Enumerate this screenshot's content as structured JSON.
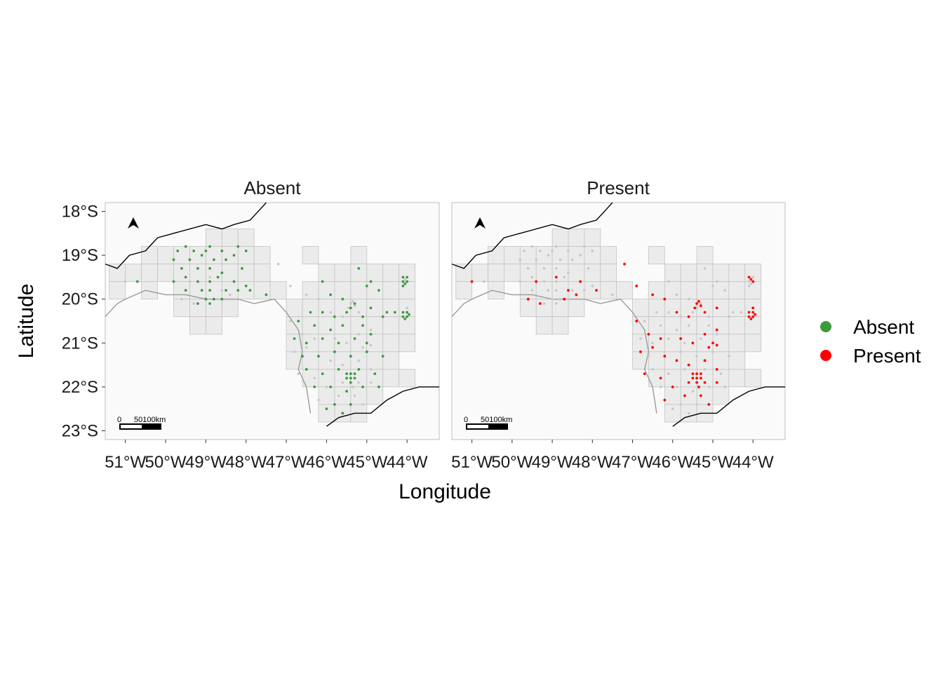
{
  "axes": {
    "xlabel": "Longitude",
    "ylabel": "Latitude",
    "x_ticks": [
      "51°W",
      "50°W",
      "49°W",
      "48°W",
      "47°W",
      "46°W",
      "45°W",
      "44°W"
    ],
    "y_ticks": [
      "18°S",
      "19°S",
      "20°S",
      "21°S",
      "22°S",
      "23°S"
    ]
  },
  "panels": [
    {
      "title": "Absent",
      "scale_labels": [
        "0",
        "50100km"
      ]
    },
    {
      "title": "Present",
      "scale_labels": [
        "0",
        "50100km"
      ]
    }
  ],
  "legend": {
    "items": [
      {
        "label": "Absent",
        "color": "#3d9b3d"
      },
      {
        "label": "Present",
        "color": "#ff0000"
      }
    ]
  },
  "colors": {
    "absent": "#3d9b3d",
    "present": "#ff0000",
    "background_points": "#c8c8c8",
    "grid_fill": "#ebebeb",
    "grid_stroke": "#c4c4c4",
    "panel_bg": "#fafafa"
  },
  "chart_data": {
    "type": "scatter",
    "xlim": [
      -51.5,
      -43.2
    ],
    "ylim": [
      -23.2,
      -17.8
    ],
    "grid_cells": [
      [
        -48.8,
        -18.6
      ],
      [
        -48.4,
        -18.6
      ],
      [
        -48.0,
        -18.6
      ],
      [
        -50.4,
        -19.0
      ],
      [
        -50.0,
        -19.0
      ],
      [
        -49.6,
        -19.0
      ],
      [
        -49.2,
        -19.0
      ],
      [
        -48.8,
        -19.0
      ],
      [
        -48.4,
        -19.0
      ],
      [
        -48.0,
        -19.0
      ],
      [
        -47.6,
        -19.0
      ],
      [
        -46.4,
        -19.0
      ],
      [
        -45.2,
        -19.0
      ],
      [
        -51.2,
        -19.4
      ],
      [
        -50.8,
        -19.4
      ],
      [
        -50.4,
        -19.4
      ],
      [
        -50.0,
        -19.4
      ],
      [
        -49.6,
        -19.4
      ],
      [
        -49.2,
        -19.4
      ],
      [
        -48.8,
        -19.4
      ],
      [
        -48.4,
        -19.4
      ],
      [
        -48.0,
        -19.4
      ],
      [
        -47.6,
        -19.4
      ],
      [
        -46.0,
        -19.4
      ],
      [
        -45.6,
        -19.4
      ],
      [
        -45.2,
        -19.4
      ],
      [
        -44.8,
        -19.4
      ],
      [
        -44.4,
        -19.4
      ],
      [
        -44.0,
        -19.4
      ],
      [
        -51.2,
        -19.8
      ],
      [
        -50.4,
        -19.8
      ],
      [
        -49.6,
        -19.8
      ],
      [
        -49.2,
        -19.8
      ],
      [
        -48.8,
        -19.8
      ],
      [
        -48.4,
        -19.8
      ],
      [
        -48.0,
        -19.8
      ],
      [
        -47.6,
        -19.8
      ],
      [
        -47.2,
        -19.8
      ],
      [
        -46.4,
        -19.8
      ],
      [
        -46.0,
        -19.8
      ],
      [
        -45.6,
        -19.8
      ],
      [
        -45.2,
        -19.8
      ],
      [
        -44.8,
        -19.8
      ],
      [
        -44.4,
        -19.8
      ],
      [
        -44.0,
        -19.8
      ],
      [
        -49.6,
        -20.2
      ],
      [
        -49.2,
        -20.2
      ],
      [
        -48.8,
        -20.2
      ],
      [
        -48.4,
        -20.2
      ],
      [
        -46.8,
        -20.2
      ],
      [
        -46.4,
        -20.2
      ],
      [
        -46.0,
        -20.2
      ],
      [
        -45.6,
        -20.2
      ],
      [
        -45.2,
        -20.2
      ],
      [
        -44.8,
        -20.2
      ],
      [
        -44.4,
        -20.2
      ],
      [
        -44.0,
        -20.2
      ],
      [
        -49.2,
        -20.6
      ],
      [
        -48.8,
        -20.6
      ],
      [
        -46.8,
        -20.6
      ],
      [
        -46.4,
        -20.6
      ],
      [
        -46.0,
        -20.6
      ],
      [
        -45.6,
        -20.6
      ],
      [
        -45.2,
        -20.6
      ],
      [
        -44.8,
        -20.6
      ],
      [
        -44.4,
        -20.6
      ],
      [
        -44.0,
        -20.6
      ],
      [
        -46.8,
        -21.0
      ],
      [
        -46.4,
        -21.0
      ],
      [
        -46.0,
        -21.0
      ],
      [
        -45.6,
        -21.0
      ],
      [
        -45.2,
        -21.0
      ],
      [
        -44.8,
        -21.0
      ],
      [
        -44.4,
        -21.0
      ],
      [
        -44.0,
        -21.0
      ],
      [
        -46.8,
        -21.4
      ],
      [
        -46.4,
        -21.4
      ],
      [
        -46.0,
        -21.4
      ],
      [
        -45.6,
        -21.4
      ],
      [
        -45.2,
        -21.4
      ],
      [
        -44.8,
        -21.4
      ],
      [
        -44.4,
        -21.4
      ],
      [
        -46.4,
        -21.8
      ],
      [
        -46.0,
        -21.8
      ],
      [
        -45.6,
        -21.8
      ],
      [
        -45.2,
        -21.8
      ],
      [
        -44.8,
        -21.8
      ],
      [
        -44.4,
        -21.8
      ],
      [
        -44.0,
        -21.8
      ],
      [
        -46.0,
        -22.2
      ],
      [
        -45.6,
        -22.2
      ],
      [
        -45.2,
        -22.2
      ],
      [
        -44.8,
        -22.2
      ],
      [
        -46.0,
        -22.6
      ],
      [
        -45.6,
        -22.6
      ],
      [
        -45.2,
        -22.6
      ]
    ],
    "series": [
      {
        "name": "Absent",
        "points": [
          [
            -49.7,
            -18.9
          ],
          [
            -49.5,
            -18.8
          ],
          [
            -49.3,
            -18.9
          ],
          [
            -49.0,
            -18.9
          ],
          [
            -48.9,
            -18.8
          ],
          [
            -48.6,
            -18.9
          ],
          [
            -48.2,
            -18.8
          ],
          [
            -48.0,
            -18.9
          ],
          [
            -49.8,
            -19.1
          ],
          [
            -49.4,
            -19.1
          ],
          [
            -49.1,
            -19.0
          ],
          [
            -48.8,
            -19.1
          ],
          [
            -48.5,
            -19.1
          ],
          [
            -48.3,
            -19.0
          ],
          [
            -49.6,
            -19.3
          ],
          [
            -49.2,
            -19.3
          ],
          [
            -48.9,
            -19.3
          ],
          [
            -48.6,
            -19.4
          ],
          [
            -48.1,
            -19.3
          ],
          [
            -50.7,
            -19.6
          ],
          [
            -49.8,
            -19.6
          ],
          [
            -49.5,
            -19.5
          ],
          [
            -49.2,
            -19.6
          ],
          [
            -48.9,
            -19.6
          ],
          [
            -48.7,
            -19.5
          ],
          [
            -48.3,
            -19.6
          ],
          [
            -48.0,
            -19.7
          ],
          [
            -49.5,
            -19.8
          ],
          [
            -49.1,
            -19.8
          ],
          [
            -48.9,
            -19.8
          ],
          [
            -48.5,
            -19.8
          ],
          [
            -48.2,
            -19.8
          ],
          [
            -47.9,
            -19.8
          ],
          [
            -49.0,
            -20.0
          ],
          [
            -48.9,
            -20.1
          ],
          [
            -48.8,
            -20.0
          ],
          [
            -49.2,
            -20.1
          ],
          [
            -48.6,
            -20.0
          ],
          [
            -47.5,
            -19.9
          ],
          [
            -46.1,
            -19.6
          ],
          [
            -45.9,
            -19.9
          ],
          [
            -45.2,
            -19.3
          ],
          [
            -45.0,
            -19.7
          ],
          [
            -44.7,
            -19.8
          ],
          [
            -44.9,
            -19.6
          ],
          [
            -45.6,
            -20.0
          ],
          [
            -46.4,
            -20.3
          ],
          [
            -46.1,
            -20.3
          ],
          [
            -45.8,
            -20.4
          ],
          [
            -45.5,
            -20.3
          ],
          [
            -45.3,
            -20.1
          ],
          [
            -45.4,
            -20.2
          ],
          [
            -45.1,
            -20.4
          ],
          [
            -44.9,
            -20.2
          ],
          [
            -44.6,
            -20.4
          ],
          [
            -46.7,
            -20.5
          ],
          [
            -46.3,
            -20.6
          ],
          [
            -45.9,
            -20.7
          ],
          [
            -45.6,
            -20.6
          ],
          [
            -45.1,
            -20.6
          ],
          [
            -44.9,
            -20.8
          ],
          [
            -46.8,
            -20.9
          ],
          [
            -46.5,
            -21.0
          ],
          [
            -46.1,
            -20.9
          ],
          [
            -45.7,
            -21.0
          ],
          [
            -45.3,
            -20.9
          ],
          [
            -45.0,
            -21.0
          ],
          [
            -46.6,
            -21.3
          ],
          [
            -46.2,
            -21.3
          ],
          [
            -45.8,
            -21.2
          ],
          [
            -45.4,
            -21.3
          ],
          [
            -45.0,
            -21.2
          ],
          [
            -44.6,
            -21.3
          ],
          [
            -46.5,
            -21.6
          ],
          [
            -46.1,
            -21.7
          ],
          [
            -45.7,
            -21.6
          ],
          [
            -45.2,
            -21.6
          ],
          [
            -44.8,
            -21.7
          ],
          [
            -46.3,
            -22.0
          ],
          [
            -45.9,
            -22.0
          ],
          [
            -45.5,
            -22.1
          ],
          [
            -45.1,
            -22.0
          ],
          [
            -45.8,
            -22.4
          ],
          [
            -45.4,
            -22.4
          ],
          [
            -45.6,
            -22.6
          ],
          [
            -46.0,
            -22.5
          ],
          [
            -44.7,
            -22.0
          ],
          [
            -45.4,
            -21.8
          ],
          [
            -45.3,
            -21.8
          ],
          [
            -45.5,
            -21.8
          ],
          [
            -45.4,
            -21.9
          ],
          [
            -45.3,
            -21.7
          ],
          [
            -45.5,
            -21.7
          ],
          [
            -45.4,
            -21.7
          ],
          [
            -44.1,
            -19.5
          ],
          [
            -44.0,
            -19.6
          ],
          [
            -44.1,
            -19.7
          ],
          [
            -44.0,
            -19.5
          ],
          [
            -44.05,
            -19.65
          ],
          [
            -44.1,
            -19.6
          ],
          [
            -44.0,
            -20.3
          ],
          [
            -44.1,
            -20.4
          ],
          [
            -44.0,
            -20.4
          ],
          [
            -44.1,
            -20.3
          ],
          [
            -43.95,
            -20.35
          ],
          [
            -44.05,
            -20.45
          ],
          [
            -44.3,
            -20.3
          ],
          [
            -44.5,
            -20.3
          ]
        ]
      },
      {
        "name": "Present",
        "points": [
          [
            -51.0,
            -19.6
          ],
          [
            -49.4,
            -19.6
          ],
          [
            -48.9,
            -19.5
          ],
          [
            -48.6,
            -19.8
          ],
          [
            -48.3,
            -19.6
          ],
          [
            -49.6,
            -20.0
          ],
          [
            -49.3,
            -20.1
          ],
          [
            -48.7,
            -20.0
          ],
          [
            -48.4,
            -19.9
          ],
          [
            -47.9,
            -19.8
          ],
          [
            -47.2,
            -19.2
          ],
          [
            -46.9,
            -19.7
          ],
          [
            -46.5,
            -19.9
          ],
          [
            -46.2,
            -20.0
          ],
          [
            -45.9,
            -20.3
          ],
          [
            -45.6,
            -20.4
          ],
          [
            -45.2,
            -20.3
          ],
          [
            -44.9,
            -20.2
          ],
          [
            -46.9,
            -20.5
          ],
          [
            -46.6,
            -20.8
          ],
          [
            -46.3,
            -20.9
          ],
          [
            -45.8,
            -20.9
          ],
          [
            -45.5,
            -21.0
          ],
          [
            -45.2,
            -20.8
          ],
          [
            -44.9,
            -20.7
          ],
          [
            -46.8,
            -21.2
          ],
          [
            -46.5,
            -21.1
          ],
          [
            -46.2,
            -21.3
          ],
          [
            -45.9,
            -21.4
          ],
          [
            -45.6,
            -21.5
          ],
          [
            -45.2,
            -21.4
          ],
          [
            -44.9,
            -21.6
          ],
          [
            -46.7,
            -21.7
          ],
          [
            -46.3,
            -21.8
          ],
          [
            -46.0,
            -22.0
          ],
          [
            -45.7,
            -22.2
          ],
          [
            -45.3,
            -22.2
          ],
          [
            -45.1,
            -22.4
          ],
          [
            -44.9,
            -21.9
          ],
          [
            -46.2,
            -22.3
          ],
          [
            -45.4,
            -20.1
          ],
          [
            -45.3,
            -20.15
          ],
          [
            -45.45,
            -20.2
          ],
          [
            -45.35,
            -20.05
          ],
          [
            -45.0,
            -21.0
          ],
          [
            -44.9,
            -21.05
          ],
          [
            -45.1,
            -21.1
          ],
          [
            -45.4,
            -21.8
          ],
          [
            -45.3,
            -21.8
          ],
          [
            -45.5,
            -21.8
          ],
          [
            -45.4,
            -21.9
          ],
          [
            -45.3,
            -21.7
          ],
          [
            -45.5,
            -21.7
          ],
          [
            -45.4,
            -21.7
          ],
          [
            -45.2,
            -21.9
          ],
          [
            -45.6,
            -21.9
          ],
          [
            -45.35,
            -22.0
          ],
          [
            -44.1,
            -19.5
          ],
          [
            -44.0,
            -19.6
          ],
          [
            -44.05,
            -19.55
          ],
          [
            -44.0,
            -20.3
          ],
          [
            -44.1,
            -20.4
          ],
          [
            -44.0,
            -20.4
          ],
          [
            -44.1,
            -20.3
          ],
          [
            -43.95,
            -20.35
          ],
          [
            -44.05,
            -20.45
          ],
          [
            -44.0,
            -20.2
          ]
        ]
      }
    ]
  }
}
